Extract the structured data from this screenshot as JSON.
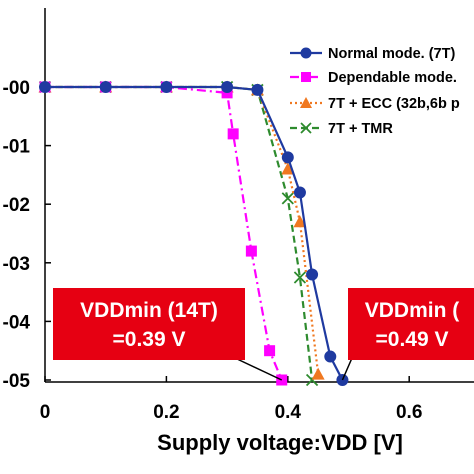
{
  "chart_data": {
    "type": "line",
    "xlabel": "Supply voltage:VDD [V]",
    "x_ticks": [
      "0",
      "0.2",
      "0.4",
      "0.6"
    ],
    "y_ticks": [
      "-00",
      "-01",
      "-02",
      "-03",
      "-04",
      "-05"
    ],
    "xlim": [
      0,
      0.7
    ],
    "ylim": [
      -5,
      0
    ],
    "grid": false,
    "legend_position": "top-right",
    "series": [
      {
        "name": "Normal mode. (7T)",
        "color": "#1f3aa0",
        "marker": "circle",
        "line": "solid",
        "x": [
          0,
          0.1,
          0.2,
          0.3,
          0.35,
          0.4,
          0.42,
          0.44,
          0.47,
          0.49
        ],
        "y": [
          0,
          0,
          0,
          0,
          -0.05,
          -1.2,
          -1.8,
          -3.2,
          -4.6,
          -5.0
        ]
      },
      {
        "name": "Dependable mode.",
        "color": "#ff00ff",
        "marker": "square",
        "line": "dashdot",
        "x": [
          0,
          0.1,
          0.2,
          0.3,
          0.31,
          0.34,
          0.37,
          0.39
        ],
        "y": [
          0,
          0,
          0,
          -0.1,
          -0.8,
          -2.8,
          -4.5,
          -5.0
        ]
      },
      {
        "name": "7T + ECC (32b,6b p",
        "color": "#f07820",
        "marker": "triangle",
        "line": "dotted",
        "x": [
          0,
          0.1,
          0.2,
          0.3,
          0.35,
          0.4,
          0.42,
          0.45
        ],
        "y": [
          0,
          0,
          0,
          0,
          -0.05,
          -1.4,
          -2.3,
          -4.9
        ]
      },
      {
        "name": "7T + TMR",
        "color": "#2e8b2e",
        "marker": "x",
        "line": "dashed",
        "x": [
          0,
          0.1,
          0.2,
          0.3,
          0.35,
          0.4,
          0.42,
          0.44
        ],
        "y": [
          0,
          0,
          0,
          0,
          -0.05,
          -1.9,
          -3.25,
          -5.0
        ]
      }
    ],
    "annotations": [
      {
        "line1": "VDDmin (14T)",
        "line2": "=0.39 V",
        "points_to_x": 0.39
      },
      {
        "line1": "VDDmin (",
        "line2": "=0.49 V",
        "points_to_x": 0.49
      }
    ]
  }
}
